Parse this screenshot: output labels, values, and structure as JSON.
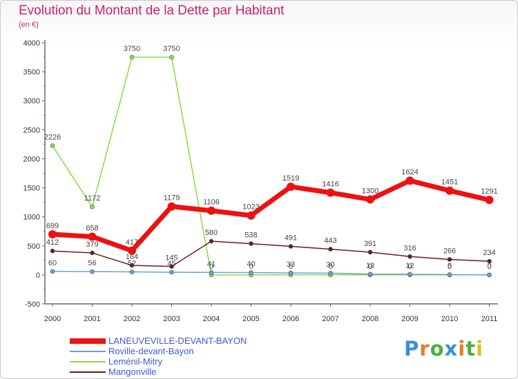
{
  "header": {
    "title": "Evolution du Montant de la Dette par Habitant",
    "unit": "(en €)"
  },
  "logo": {
    "text": "Proxiti"
  },
  "chart_data": {
    "type": "line",
    "title": "Evolution du Montant de la Dette par Habitant",
    "ylabel": "(en €)",
    "xlabel": "",
    "categories": [
      "2000",
      "2001",
      "2002",
      "2003",
      "2004",
      "2005",
      "2006",
      "2007",
      "2008",
      "2009",
      "2010",
      "2011"
    ],
    "ylim": [
      -500,
      4000
    ],
    "yticks": [
      -500,
      0,
      500,
      1000,
      1500,
      2000,
      2500,
      3000,
      3500,
      4000
    ],
    "grid": false,
    "legend_position": "bottom-left",
    "series": [
      {
        "name": "LANEUVEVILLE-DEVANT-BAYON",
        "color": "#ee1111",
        "values": [
          699,
          658,
          417,
          1179,
          1106,
          1023,
          1519,
          1416,
          1300,
          1624,
          1451,
          1291
        ]
      },
      {
        "name": "Roville-devant-Bayon",
        "color": "#6b9fd4",
        "values": [
          60,
          56,
          52,
          45,
          41,
          40,
          33,
          30,
          13,
          12,
          5,
          0
        ]
      },
      {
        "name": "Leménil-Mitry",
        "color": "#88dd44",
        "values": [
          2226,
          1172,
          3750,
          3750,
          0,
          0,
          0,
          0,
          0,
          0,
          0,
          0
        ]
      },
      {
        "name": "Mangonville",
        "color": "#6b1a1a",
        "values": [
          412,
          379,
          164,
          145,
          580,
          538,
          491,
          443,
          391,
          316,
          266,
          234
        ]
      }
    ],
    "data_labels": [
      {
        "series": "LANEUVEVILLE-DEVANT-BAYON",
        "labels": [
          "699",
          "658",
          "417",
          "1179",
          "1106",
          "1023",
          "1519",
          "1416",
          "1300",
          "1624",
          "1451",
          "1291"
        ]
      },
      {
        "series": "Roville-devant-Bayon",
        "labels": [
          "60",
          "56",
          "52",
          "45",
          "41",
          "40",
          "33",
          "30",
          "13",
          "12",
          "5",
          "0"
        ]
      },
      {
        "series": "Leménil-Mitry",
        "labels": [
          "2226",
          "1172",
          "3750",
          "3750",
          "0",
          "0",
          "0",
          "0",
          "0",
          "0",
          "0",
          "0"
        ]
      },
      {
        "series": "Mangonville",
        "labels": [
          "412",
          "379",
          "164",
          "145",
          "580",
          "538",
          "491",
          "443",
          "391",
          "316",
          "266",
          "234"
        ]
      }
    ]
  }
}
